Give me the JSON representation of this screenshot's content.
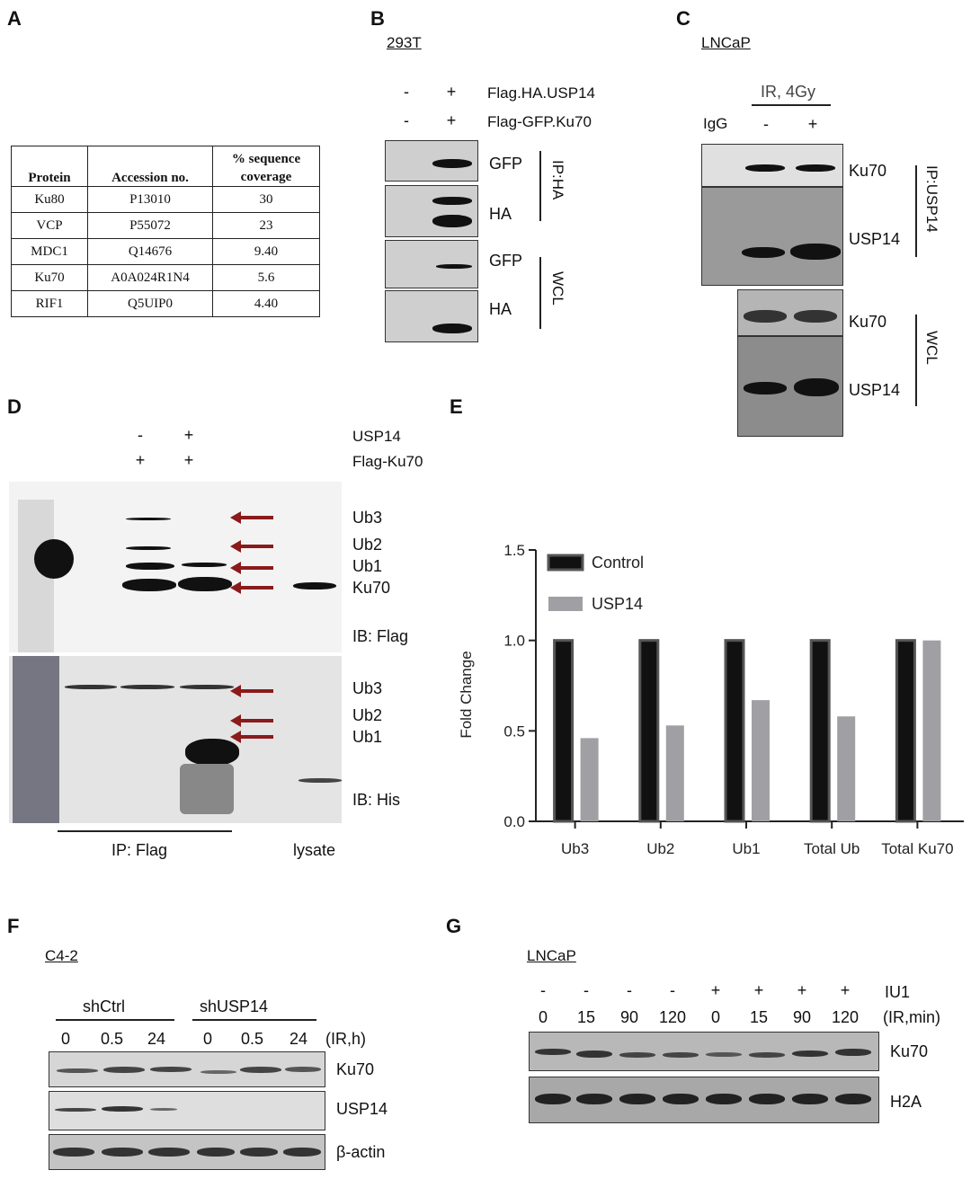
{
  "panels": {
    "A": {
      "letter": "A",
      "headers": [
        "Protein",
        "Accession no.",
        "% sequence coverage"
      ],
      "rows": [
        [
          "Ku80",
          "P13010",
          "30"
        ],
        [
          "VCP",
          "P55072",
          "23"
        ],
        [
          "MDC1",
          "Q14676",
          "9.40"
        ],
        [
          "Ku70",
          "A0A024R1N4",
          "5.6"
        ],
        [
          "RIF1",
          "Q5UIP0",
          "4.40"
        ]
      ]
    },
    "B": {
      "letter": "B",
      "cell": "293T",
      "cond1": "Flag.HA.USP14",
      "cond2": "Flag-GFP.Ku70",
      "minus": "-",
      "plus": "+",
      "bands": [
        "GFP",
        "HA",
        "GFP",
        "HA"
      ],
      "ip": "IP:HA",
      "wcl": "WCL"
    },
    "C": {
      "letter": "C",
      "cell": "LNCaP",
      "treatment": "IR,  4Gy",
      "igg": "IgG",
      "minus": "-",
      "plus": "+",
      "bands": [
        "Ku70",
        "USP14",
        "Ku70",
        "USP14"
      ],
      "ip": "IP:USP14",
      "wcl": "WCL"
    },
    "D": {
      "letter": "D",
      "cond1": "USP14",
      "cond2": "Flag-Ku70",
      "minus": "-",
      "plus": "+",
      "top_bands": [
        "Ub3",
        "Ub2",
        "Ub1",
        "Ku70"
      ],
      "ib_top": "IB: Flag",
      "bottom_bands": [
        "Ub3",
        "Ub2",
        "Ub1"
      ],
      "ib_bottom": "IB: His",
      "ip": "IP: Flag",
      "lysate": "lysate"
    },
    "E": {
      "letter": "E"
    },
    "F": {
      "letter": "F",
      "cell": "C4-2",
      "group1": "shCtrl",
      "group2": "shUSP14",
      "times": [
        "0",
        "0.5",
        "24",
        "0",
        "0.5",
        "24"
      ],
      "unit": "(IR,h)",
      "bands": [
        "Ku70",
        "USP14",
        "β-actin"
      ]
    },
    "G": {
      "letter": "G",
      "cell": "LNCaP",
      "iu1_label": "IU1",
      "iu1": [
        "-",
        "-",
        "-",
        "-",
        "+",
        "+",
        "+",
        "+"
      ],
      "times": [
        "0",
        "15",
        "90",
        "120",
        "0",
        "15",
        "90",
        "120"
      ],
      "unit": "(IR,min)",
      "bands": [
        "Ku70",
        "H2A"
      ]
    }
  },
  "chart_data": {
    "type": "bar",
    "categories": [
      "Ub3",
      "Ub2",
      "Ub1",
      "Total Ub",
      "Total Ku70"
    ],
    "series": [
      {
        "name": "Control",
        "values": [
          1.0,
          1.0,
          1.0,
          1.0,
          1.0
        ],
        "color": "#111111"
      },
      {
        "name": "USP14",
        "values": [
          0.46,
          0.53,
          0.67,
          0.58,
          1.0
        ],
        "color": "#a0a0a4"
      }
    ],
    "ylabel": "Fold Change",
    "ylim": [
      0,
      1.5
    ],
    "yticks": [
      "0.0",
      "0.5",
      "1.0",
      "1.5"
    ],
    "legend": "top-left"
  }
}
